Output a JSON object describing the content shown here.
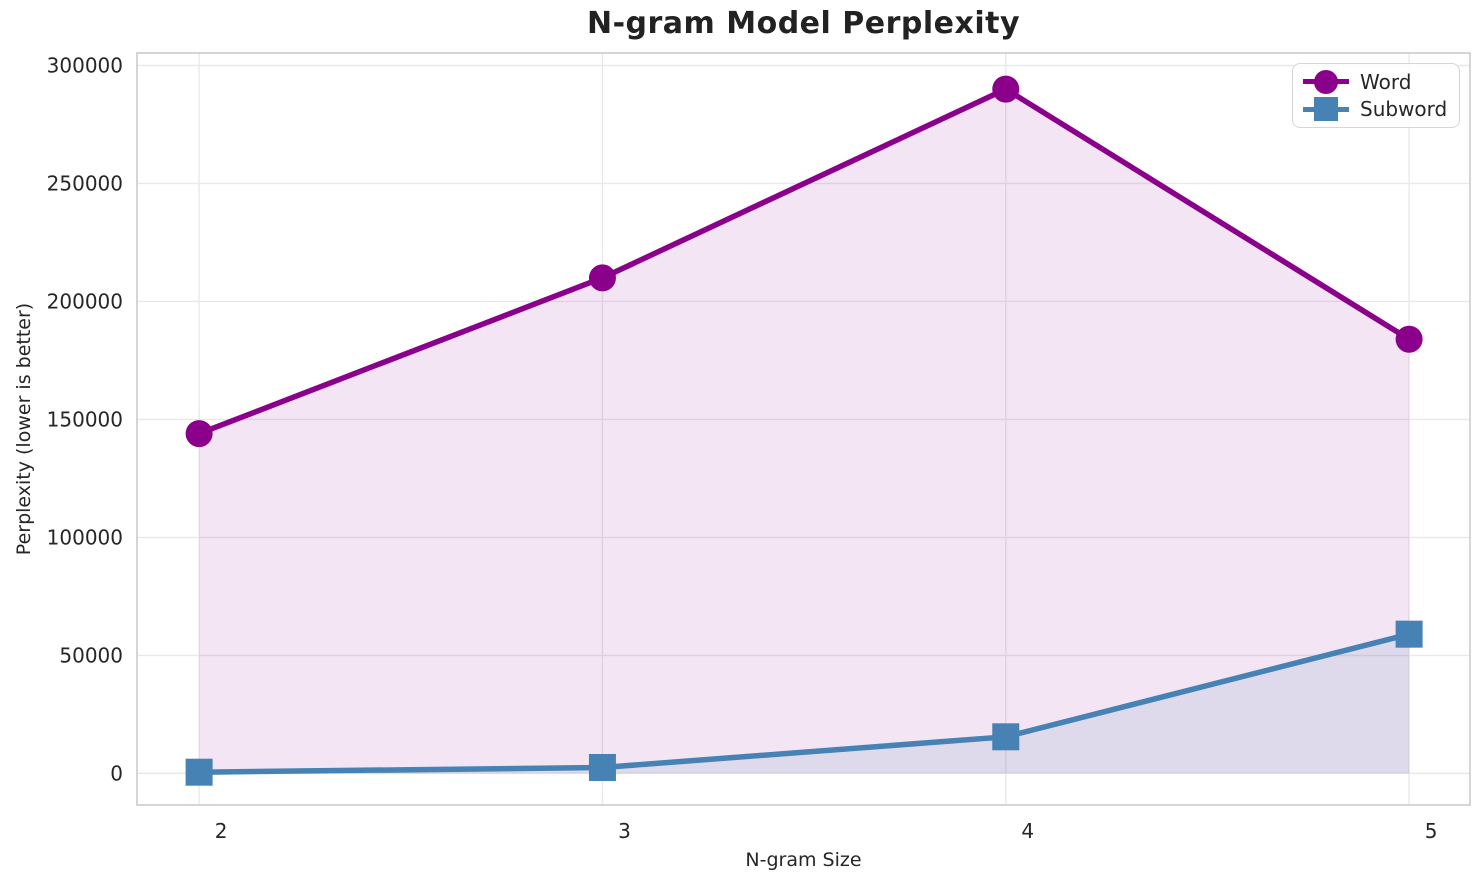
{
  "chart_data": {
    "type": "line",
    "title": "N-gram Model Perplexity",
    "xlabel": "N-gram Size",
    "ylabel": "Perplexity (lower is better)",
    "x": [
      2,
      3,
      4,
      5
    ],
    "x_tick_labels": [
      "2",
      "3",
      "4",
      "5"
    ],
    "y_ticks": [
      0,
      50000,
      100000,
      150000,
      200000,
      250000,
      300000
    ],
    "xlim": [
      1.846,
      5.151
    ],
    "ylim": [
      -13400,
      305300
    ],
    "grid": true,
    "legend_position": "upper right",
    "area_baseline": 0,
    "series": [
      {
        "name": "Word",
        "marker": "circle",
        "color": "#8B008B",
        "fill_opacity": 0.1,
        "values": [
          144000,
          210000,
          290000,
          184000
        ]
      },
      {
        "name": "Subword",
        "marker": "square",
        "color": "#4682B4",
        "fill_opacity": 0.12,
        "values": [
          500,
          2500,
          15500,
          59000
        ]
      }
    ],
    "colors": {
      "grid": "#e9e9e9",
      "spine": "#cbcbcb",
      "tick_text": "#262626",
      "title_text": "#222222"
    }
  }
}
